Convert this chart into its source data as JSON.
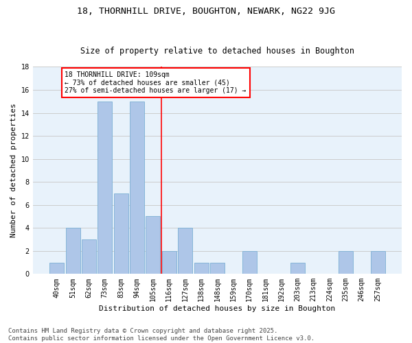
{
  "title": "18, THORNHILL DRIVE, BOUGHTON, NEWARK, NG22 9JG",
  "subtitle": "Size of property relative to detached houses in Boughton",
  "xlabel": "Distribution of detached houses by size in Boughton",
  "ylabel": "Number of detached properties",
  "bar_labels": [
    "40sqm",
    "51sqm",
    "62sqm",
    "73sqm",
    "83sqm",
    "94sqm",
    "105sqm",
    "116sqm",
    "127sqm",
    "138sqm",
    "148sqm",
    "159sqm",
    "170sqm",
    "181sqm",
    "192sqm",
    "203sqm",
    "213sqm",
    "224sqm",
    "235sqm",
    "246sqm",
    "257sqm"
  ],
  "bar_values": [
    1,
    4,
    3,
    15,
    7,
    15,
    5,
    2,
    4,
    1,
    1,
    0,
    2,
    0,
    0,
    1,
    0,
    0,
    2,
    0,
    2
  ],
  "bar_color": "#aec6e8",
  "bar_edge_color": "#7aafd4",
  "grid_color": "#cccccc",
  "background_color": "#e8f2fb",
  "reference_line_x": 6.5,
  "reference_line_color": "red",
  "annotation_text": "18 THORNHILL DRIVE: 109sqm\n← 73% of detached houses are smaller (45)\n27% of semi-detached houses are larger (17) →",
  "ylim": [
    0,
    18
  ],
  "yticks": [
    0,
    2,
    4,
    6,
    8,
    10,
    12,
    14,
    16,
    18
  ],
  "footer_text": "Contains HM Land Registry data © Crown copyright and database right 2025.\nContains public sector information licensed under the Open Government Licence v3.0.",
  "title_fontsize": 9.5,
  "subtitle_fontsize": 8.5,
  "xlabel_fontsize": 8,
  "ylabel_fontsize": 8,
  "tick_fontsize": 7,
  "annotation_fontsize": 7,
  "footer_fontsize": 6.5
}
